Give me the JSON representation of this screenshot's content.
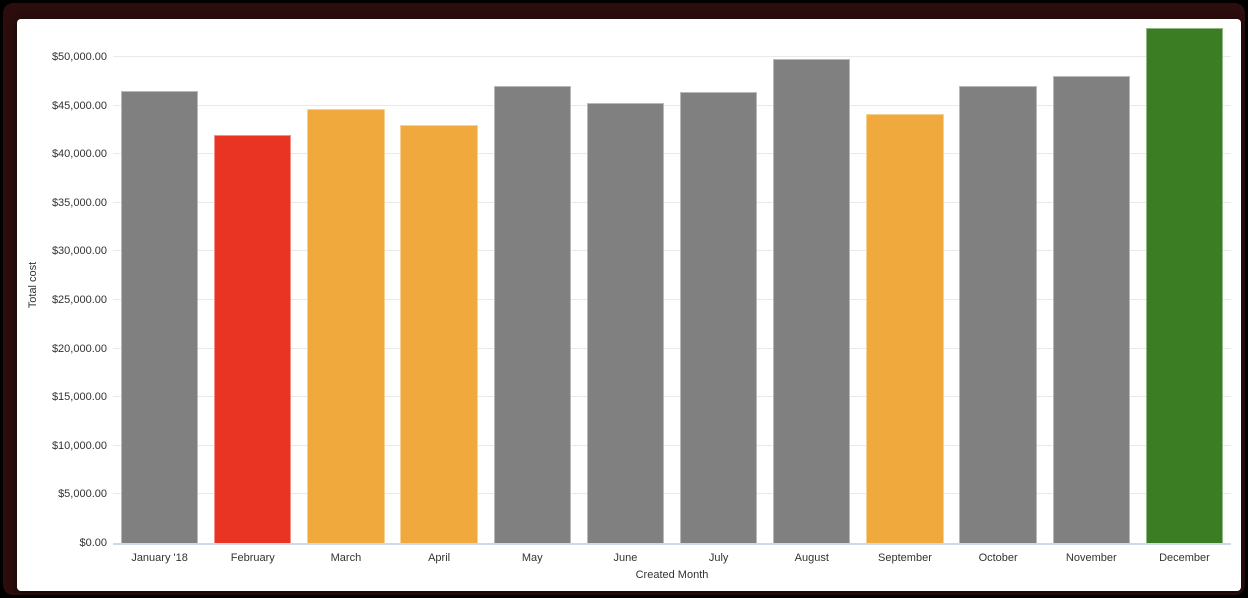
{
  "frame": {
    "outer_color": "#000000",
    "inner_color": "#2b0d0d",
    "card_color": "#ffffff"
  },
  "chart_data": {
    "type": "bar",
    "title": "",
    "xlabel": "Created Month",
    "ylabel": "Total cost",
    "ylim": [
      0,
      53100
    ],
    "grid": "horizontal",
    "legend": "none",
    "y_ticks": [
      {
        "value": 0,
        "label": "$0.00"
      },
      {
        "value": 5000,
        "label": "$5,000.00"
      },
      {
        "value": 10000,
        "label": "$10,000.00"
      },
      {
        "value": 15000,
        "label": "$15,000.00"
      },
      {
        "value": 20000,
        "label": "$20,000.00"
      },
      {
        "value": 25000,
        "label": "$25,000.00"
      },
      {
        "value": 30000,
        "label": "$30,000.00"
      },
      {
        "value": 35000,
        "label": "$35,000.00"
      },
      {
        "value": 40000,
        "label": "$40,000.00"
      },
      {
        "value": 45000,
        "label": "$45,000.00"
      },
      {
        "value": 50000,
        "label": "$50,000.00"
      }
    ],
    "categories": [
      "January '18",
      "February",
      "March",
      "April",
      "May",
      "June",
      "July",
      "August",
      "September",
      "October",
      "November",
      "December"
    ],
    "values": [
      46500,
      42000,
      44700,
      43000,
      47000,
      45300,
      46400,
      49800,
      44100,
      47000,
      48100,
      53000
    ],
    "bar_colors": [
      "#808080",
      "#ea3423",
      "#f0a93c",
      "#f0a93c",
      "#808080",
      "#808080",
      "#808080",
      "#808080",
      "#f0a93c",
      "#808080",
      "#808080",
      "#3a7d22"
    ],
    "colors": {
      "default_bar": "#808080",
      "low_bar": "#ea3423",
      "warn_bar": "#f0a93c",
      "high_bar": "#3a7d22",
      "gridline": "#e9e9e9",
      "axis_line": "#cfd8e8",
      "text": "#333333"
    }
  }
}
